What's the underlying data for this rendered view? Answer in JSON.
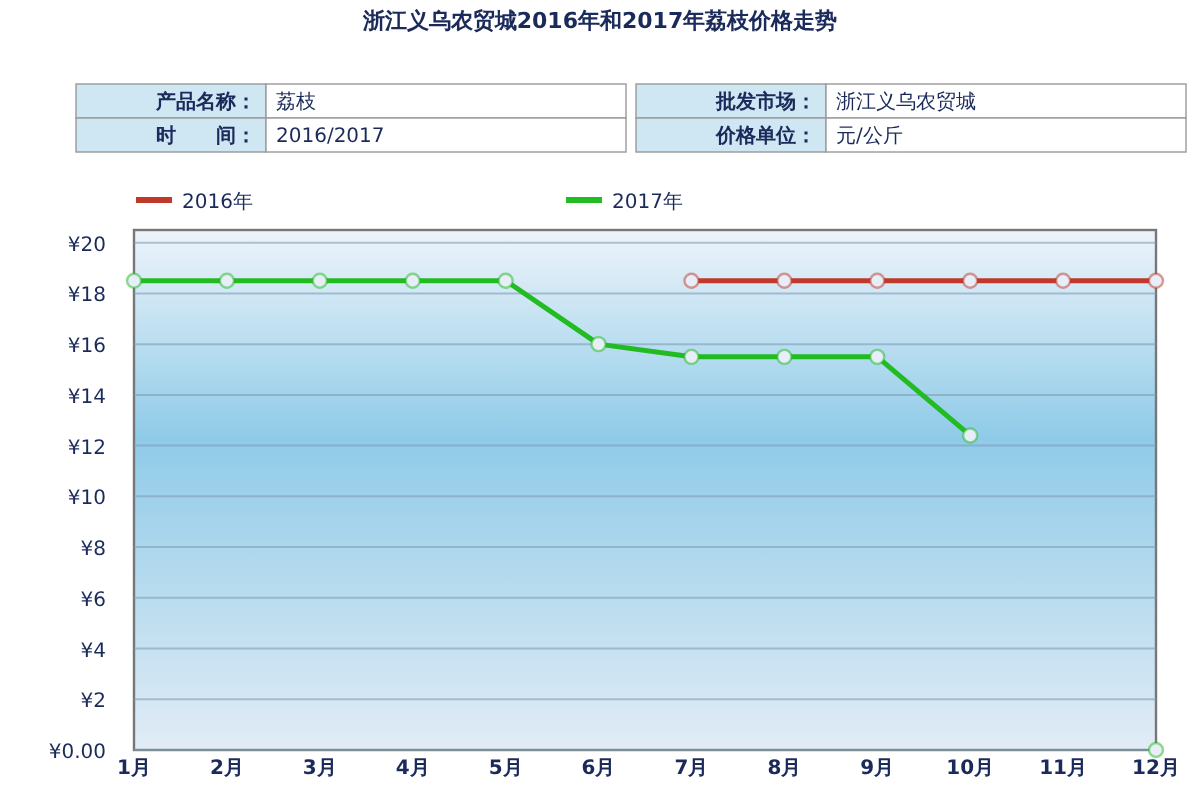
{
  "chart_data": {
    "type": "line",
    "title": "浙江义乌农贸城2016年和2017年荔枝价格走势",
    "annotations": [
      "产品名称：",
      "荔枝",
      "时　　间：",
      "2016/2017",
      "批发市场：",
      "浙江义乌农贸城",
      "价格单位：",
      "元/公斤"
    ],
    "categories": [
      "1月",
      "2月",
      "3月",
      "4月",
      "5月",
      "6月",
      "7月",
      "8月",
      "9月",
      "10月",
      "11月",
      "12月"
    ],
    "series": [
      {
        "name": "2016年",
        "color": "#c0392b",
        "values": [
          null,
          null,
          null,
          null,
          null,
          null,
          18.5,
          18.5,
          18.5,
          18.5,
          18.5,
          18.5
        ]
      },
      {
        "name": "2017年",
        "color": "#22bb22",
        "values": [
          18.5,
          18.5,
          18.5,
          18.5,
          18.5,
          16,
          15.5,
          15.5,
          15.5,
          12.4,
          null,
          0
        ]
      }
    ],
    "ylim": [
      0,
      20.5
    ],
    "yticks": [
      {
        "value": 0,
        "label": "¥0.00"
      },
      {
        "value": 2,
        "label": "¥2"
      },
      {
        "value": 4,
        "label": "¥4"
      },
      {
        "value": 6,
        "label": "¥6"
      },
      {
        "value": 8,
        "label": "¥8"
      },
      {
        "value": 10,
        "label": "¥10"
      },
      {
        "value": 12,
        "label": "¥12"
      },
      {
        "value": 14,
        "label": "¥14"
      },
      {
        "value": 16,
        "label": "¥16"
      },
      {
        "value": 18,
        "label": "¥18"
      },
      {
        "value": 20,
        "label": "¥20"
      }
    ],
    "grid": "y",
    "legend": "top left",
    "marker": "circle",
    "line_style": "solid"
  }
}
